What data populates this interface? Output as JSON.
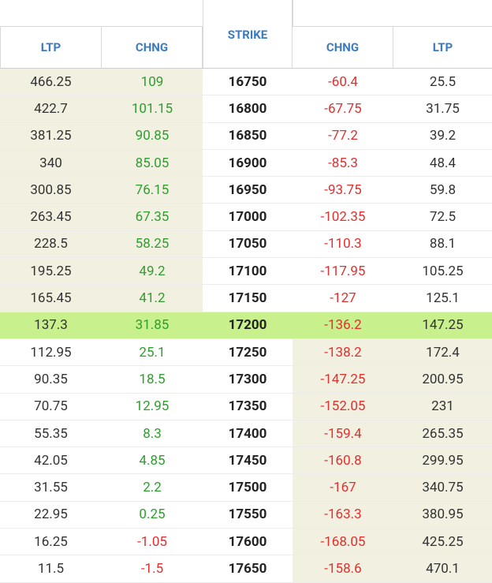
{
  "header": {
    "calls_ltp": "LTP",
    "calls_chng": "CHNG",
    "strike": "STRIKE",
    "puts_chng": "CHNG",
    "puts_ltp": "LTP"
  },
  "atm_strike": "17200",
  "rows": [
    {
      "c_ltp": "466.25",
      "c_chng": "109",
      "strike": "16750",
      "p_chng": "-60.4",
      "p_ltp": "25.5"
    },
    {
      "c_ltp": "422.7",
      "c_chng": "101.15",
      "strike": "16800",
      "p_chng": "-67.75",
      "p_ltp": "31.75"
    },
    {
      "c_ltp": "381.25",
      "c_chng": "90.85",
      "strike": "16850",
      "p_chng": "-77.2",
      "p_ltp": "39.2"
    },
    {
      "c_ltp": "340",
      "c_chng": "85.05",
      "strike": "16900",
      "p_chng": "-85.3",
      "p_ltp": "48.4"
    },
    {
      "c_ltp": "300.85",
      "c_chng": "76.15",
      "strike": "16950",
      "p_chng": "-93.75",
      "p_ltp": "59.8"
    },
    {
      "c_ltp": "263.45",
      "c_chng": "67.35",
      "strike": "17000",
      "p_chng": "-102.35",
      "p_ltp": "72.5"
    },
    {
      "c_ltp": "228.5",
      "c_chng": "58.25",
      "strike": "17050",
      "p_chng": "-110.3",
      "p_ltp": "88.1"
    },
    {
      "c_ltp": "195.25",
      "c_chng": "49.2",
      "strike": "17100",
      "p_chng": "-117.95",
      "p_ltp": "105.25"
    },
    {
      "c_ltp": "165.45",
      "c_chng": "41.2",
      "strike": "17150",
      "p_chng": "-127",
      "p_ltp": "125.1"
    },
    {
      "c_ltp": "137.3",
      "c_chng": "31.85",
      "strike": "17200",
      "p_chng": "-136.2",
      "p_ltp": "147.25"
    },
    {
      "c_ltp": "112.95",
      "c_chng": "25.1",
      "strike": "17250",
      "p_chng": "-138.2",
      "p_ltp": "172.4"
    },
    {
      "c_ltp": "90.35",
      "c_chng": "18.5",
      "strike": "17300",
      "p_chng": "-147.25",
      "p_ltp": "200.95"
    },
    {
      "c_ltp": "70.75",
      "c_chng": "12.95",
      "strike": "17350",
      "p_chng": "-152.05",
      "p_ltp": "231"
    },
    {
      "c_ltp": "55.35",
      "c_chng": "8.3",
      "strike": "17400",
      "p_chng": "-159.4",
      "p_ltp": "265.35"
    },
    {
      "c_ltp": "42.05",
      "c_chng": "4.85",
      "strike": "17450",
      "p_chng": "-160.8",
      "p_ltp": "299.95"
    },
    {
      "c_ltp": "31.55",
      "c_chng": "2.2",
      "strike": "17500",
      "p_chng": "-167",
      "p_ltp": "340.75"
    },
    {
      "c_ltp": "22.95",
      "c_chng": "0.25",
      "strike": "17550",
      "p_chng": "-163.3",
      "p_ltp": "380.95"
    },
    {
      "c_ltp": "16.25",
      "c_chng": "-1.05",
      "strike": "17600",
      "p_chng": "-168.05",
      "p_ltp": "425.25"
    },
    {
      "c_ltp": "11.5",
      "c_chng": "-1.5",
      "strike": "17650",
      "p_chng": "-158.6",
      "p_ltp": "470.1"
    }
  ],
  "colors": {
    "header_text": "#3a7bbf",
    "positive": "#2e9e2e",
    "negative": "#e03030",
    "itm_bg": "#f2f0e0",
    "atm_bg": "#c8f08c"
  }
}
